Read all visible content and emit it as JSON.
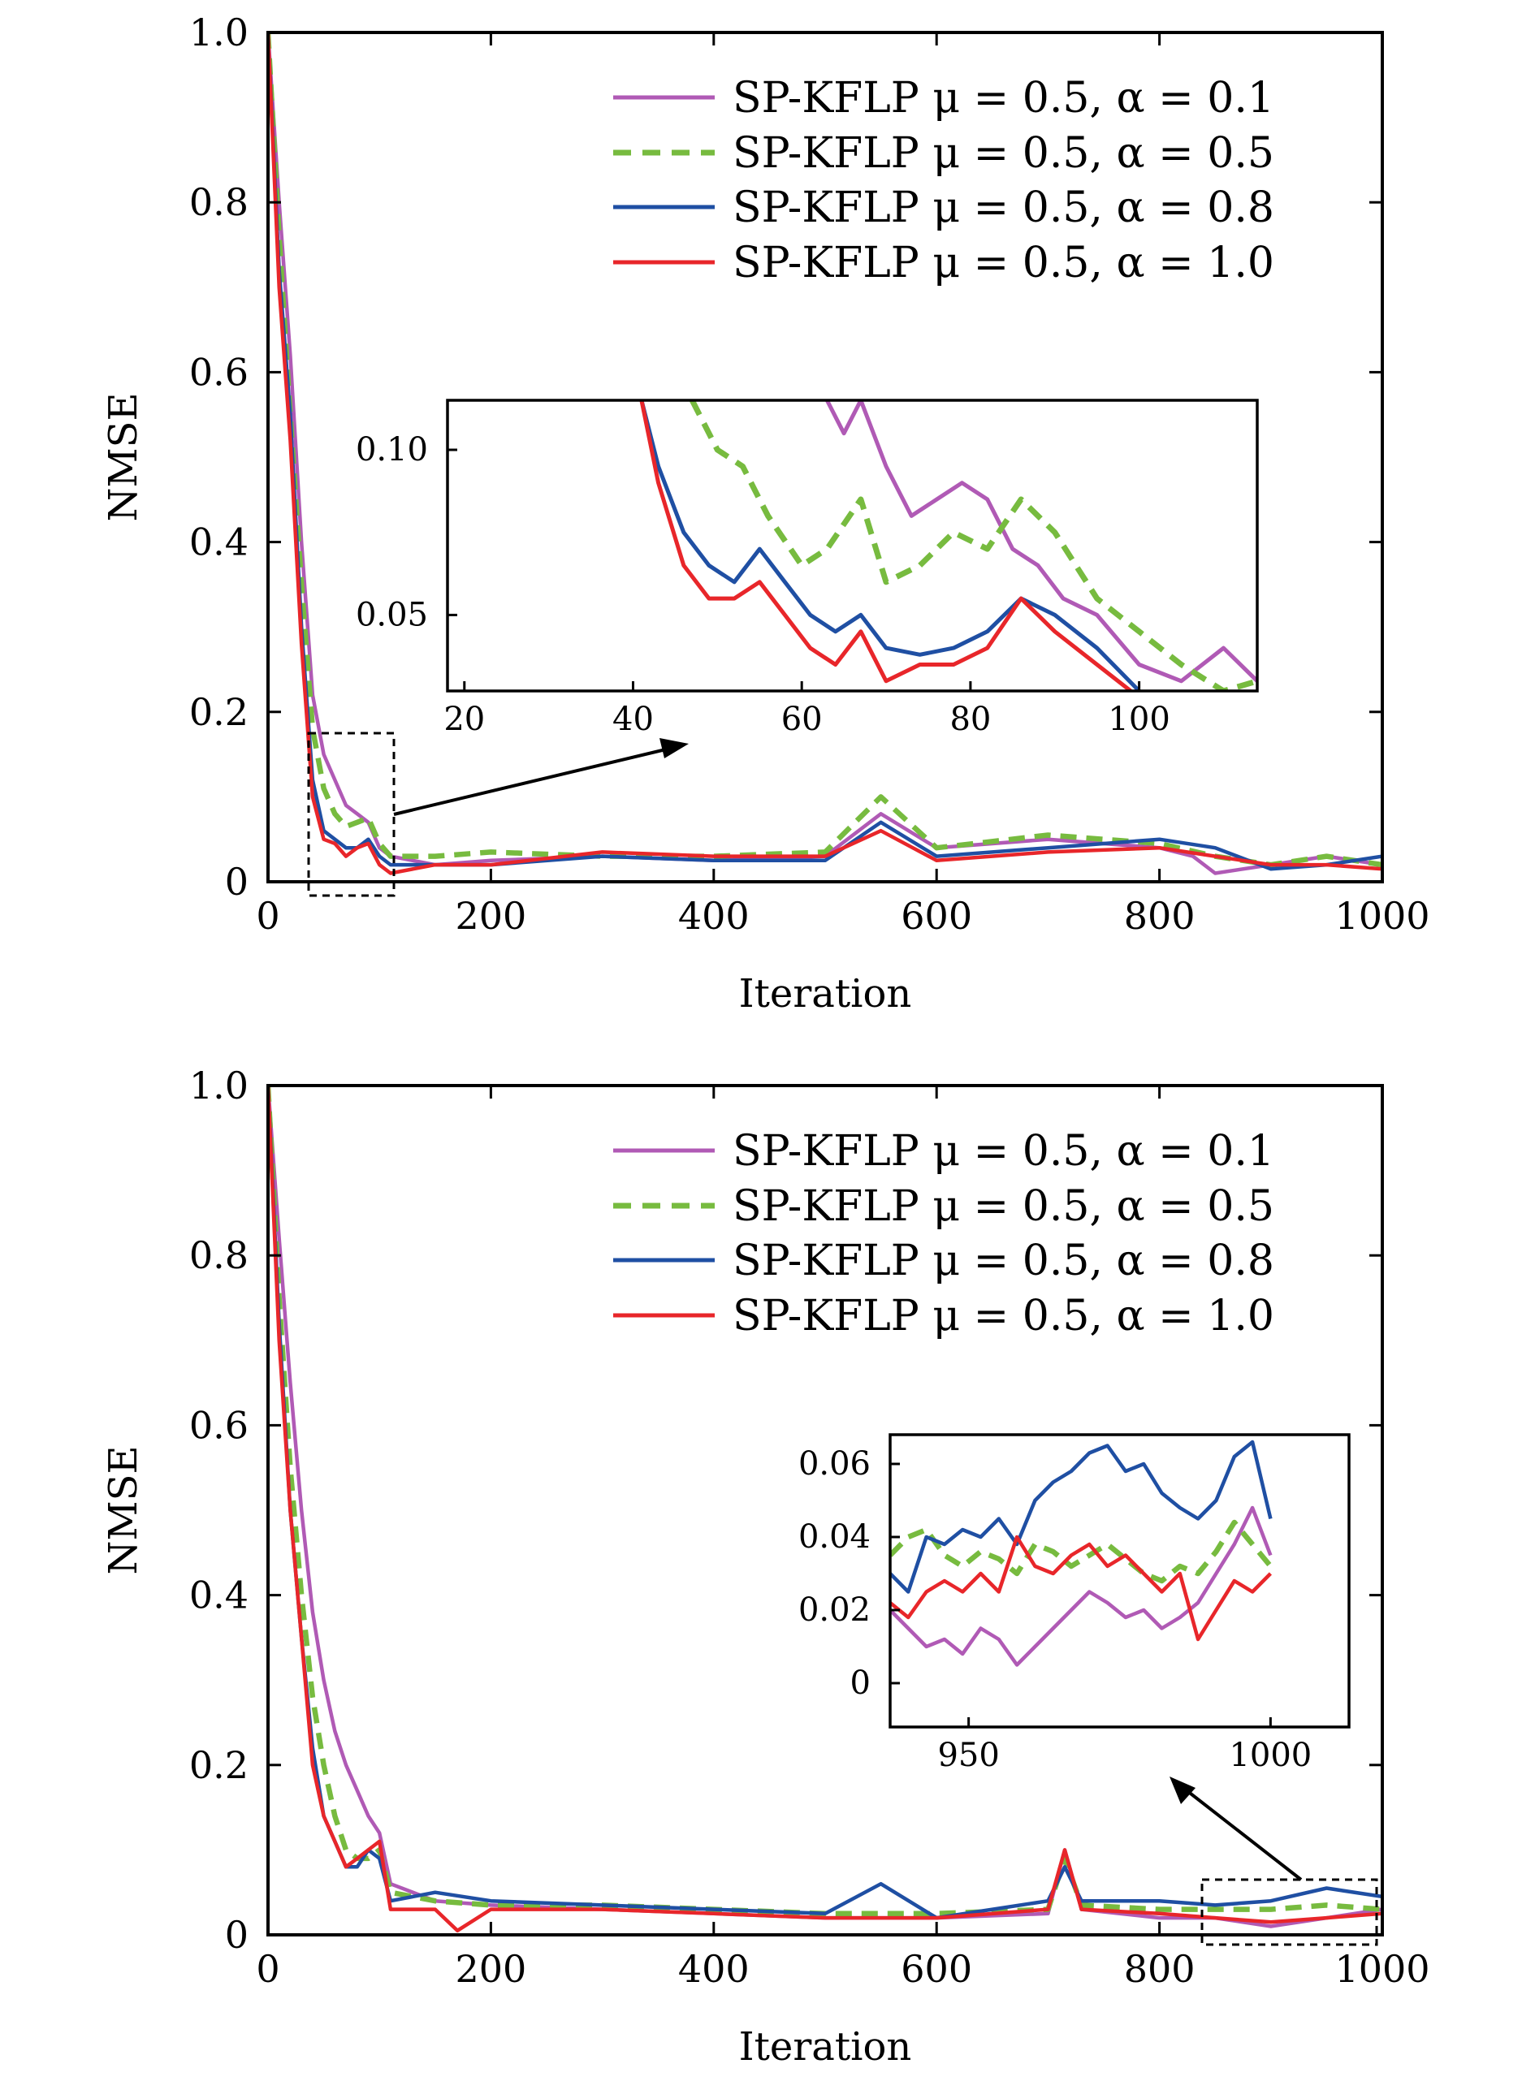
{
  "chart_data": [
    {
      "type": "line",
      "title": "",
      "xlabel": "Iteration",
      "ylabel": "NMSE",
      "xlim": [
        0,
        1000
      ],
      "ylim": [
        0,
        1.0
      ],
      "xticks": [
        0,
        200,
        400,
        600,
        800,
        1000
      ],
      "xtick_labels": [
        "0",
        "200",
        "400",
        "600",
        "800",
        "1000"
      ],
      "yticks": [
        0,
        0.2,
        0.4,
        0.6,
        0.8,
        1.0
      ],
      "ytick_labels": [
        "0",
        "0.2",
        "0.4",
        "0.6",
        "0.8",
        "1.0"
      ],
      "grid": false,
      "legend_position": "top-right",
      "series": [
        {
          "name": "SP-KFLP μ = 0.5, α = 0.1",
          "color": "#b05ab5",
          "dash": "solid",
          "x": [
            0,
            10,
            20,
            30,
            40,
            50,
            60,
            70,
            80,
            90,
            100,
            110,
            150,
            200,
            300,
            400,
            500,
            550,
            600,
            700,
            800,
            830,
            850,
            900,
            950,
            1000
          ],
          "y": [
            1.0,
            0.8,
            0.62,
            0.4,
            0.22,
            0.15,
            0.12,
            0.09,
            0.08,
            0.07,
            0.04,
            0.03,
            0.02,
            0.025,
            0.03,
            0.025,
            0.03,
            0.08,
            0.04,
            0.05,
            0.04,
            0.03,
            0.01,
            0.02,
            0.03,
            0.02
          ]
        },
        {
          "name": "SP-KFLP μ = 0.5, α = 0.5",
          "color": "#77bb3f",
          "dash": "dashed",
          "x": [
            0,
            10,
            20,
            30,
            40,
            50,
            60,
            70,
            80,
            90,
            100,
            110,
            150,
            200,
            300,
            400,
            500,
            550,
            600,
            700,
            800,
            850,
            900,
            950,
            1000
          ],
          "y": [
            1.0,
            0.76,
            0.55,
            0.35,
            0.18,
            0.11,
            0.08,
            0.065,
            0.07,
            0.075,
            0.045,
            0.03,
            0.03,
            0.035,
            0.03,
            0.03,
            0.035,
            0.1,
            0.04,
            0.055,
            0.045,
            0.03,
            0.02,
            0.03,
            0.02
          ]
        },
        {
          "name": "SP-KFLP μ = 0.5, α = 0.8",
          "color": "#1f4fa3",
          "dash": "solid",
          "x": [
            0,
            10,
            20,
            30,
            40,
            50,
            60,
            70,
            80,
            90,
            100,
            110,
            150,
            200,
            300,
            400,
            500,
            550,
            600,
            700,
            800,
            850,
            900,
            950,
            1000
          ],
          "y": [
            1.0,
            0.72,
            0.55,
            0.3,
            0.12,
            0.06,
            0.05,
            0.04,
            0.04,
            0.05,
            0.03,
            0.02,
            0.02,
            0.02,
            0.03,
            0.025,
            0.025,
            0.07,
            0.03,
            0.04,
            0.05,
            0.04,
            0.015,
            0.02,
            0.03
          ]
        },
        {
          "name": "SP-KFLP μ = 0.5, α = 1.0",
          "color": "#e8262a",
          "dash": "solid",
          "x": [
            0,
            10,
            20,
            30,
            40,
            50,
            60,
            70,
            80,
            90,
            100,
            110,
            150,
            200,
            300,
            400,
            500,
            550,
            600,
            700,
            800,
            850,
            900,
            950,
            1000
          ],
          "y": [
            1.0,
            0.7,
            0.52,
            0.28,
            0.1,
            0.05,
            0.045,
            0.03,
            0.04,
            0.045,
            0.02,
            0.01,
            0.02,
            0.02,
            0.035,
            0.03,
            0.03,
            0.06,
            0.025,
            0.035,
            0.04,
            0.03,
            0.02,
            0.02,
            0.015
          ]
        }
      ]
    },
    {
      "type": "line",
      "title": "",
      "xlabel": "",
      "ylabel": "",
      "xlim": [
        18,
        114
      ],
      "ylim": [
        0.027,
        0.115
      ],
      "xticks": [
        20,
        40,
        60,
        80,
        100
      ],
      "xtick_labels": [
        "20",
        "40",
        "60",
        "80",
        "100"
      ],
      "yticks": [
        0.05,
        0.1
      ],
      "ytick_labels": [
        "0.05",
        "0.10"
      ],
      "grid": false,
      "series": [
        {
          "name": "SP-KFLP μ = 0.5, α = 0.1",
          "color": "#b05ab5",
          "dash": "solid",
          "x": [
            63,
            65,
            67,
            70,
            73,
            76,
            79,
            82,
            85,
            88,
            91,
            95,
            100,
            105,
            110,
            114
          ],
          "y": [
            0.115,
            0.105,
            0.115,
            0.095,
            0.08,
            0.085,
            0.09,
            0.085,
            0.07,
            0.065,
            0.055,
            0.05,
            0.035,
            0.03,
            0.04,
            0.03
          ]
        },
        {
          "name": "SP-KFLP μ = 0.5, α = 0.5",
          "color": "#77bb3f",
          "dash": "dashed",
          "x": [
            47,
            50,
            53,
            56,
            60,
            63,
            67,
            70,
            74,
            78,
            82,
            86,
            90,
            95,
            100,
            105,
            110,
            114
          ],
          "y": [
            0.115,
            0.1,
            0.095,
            0.08,
            0.065,
            0.07,
            0.085,
            0.06,
            0.065,
            0.075,
            0.07,
            0.085,
            0.075,
            0.055,
            0.045,
            0.035,
            0.027,
            0.03
          ]
        },
        {
          "name": "SP-KFLP μ = 0.5, α = 0.8",
          "color": "#1f4fa3",
          "dash": "solid",
          "x": [
            41,
            43,
            46,
            49,
            52,
            55,
            58,
            61,
            64,
            67,
            70,
            74,
            78,
            82,
            86,
            90,
            95,
            100
          ],
          "y": [
            0.115,
            0.095,
            0.075,
            0.065,
            0.06,
            0.07,
            0.06,
            0.05,
            0.045,
            0.05,
            0.04,
            0.038,
            0.04,
            0.045,
            0.055,
            0.05,
            0.04,
            0.027
          ]
        },
        {
          "name": "SP-KFLP μ = 0.5, α = 1.0",
          "color": "#e8262a",
          "dash": "solid",
          "x": [
            41,
            43,
            46,
            49,
            52,
            55,
            58,
            61,
            64,
            67,
            70,
            74,
            78,
            82,
            86,
            90,
            95,
            99
          ],
          "y": [
            0.115,
            0.09,
            0.065,
            0.055,
            0.055,
            0.06,
            0.05,
            0.04,
            0.035,
            0.045,
            0.03,
            0.035,
            0.035,
            0.04,
            0.055,
            0.045,
            0.035,
            0.027
          ]
        }
      ]
    },
    {
      "type": "line",
      "title": "",
      "xlabel": "Iteration",
      "ylabel": "NMSE",
      "xlim": [
        0,
        1000
      ],
      "ylim": [
        0,
        1.0
      ],
      "xticks": [
        0,
        200,
        400,
        600,
        800,
        1000
      ],
      "xtick_labels": [
        "0",
        "200",
        "400",
        "600",
        "800",
        "1000"
      ],
      "yticks": [
        0,
        0.2,
        0.4,
        0.6,
        0.8,
        1.0
      ],
      "ytick_labels": [
        "0",
        "0.2",
        "0.4",
        "0.6",
        "0.8",
        "1.0"
      ],
      "grid": false,
      "legend_position": "top-right",
      "series": [
        {
          "name": "SP-KFLP μ = 0.5, α = 0.1",
          "color": "#b05ab5",
          "dash": "solid",
          "x": [
            0,
            10,
            20,
            30,
            40,
            50,
            60,
            70,
            80,
            90,
            100,
            110,
            150,
            200,
            300,
            400,
            500,
            600,
            700,
            715,
            730,
            800,
            850,
            900,
            950,
            1000
          ],
          "y": [
            1.0,
            0.82,
            0.65,
            0.5,
            0.38,
            0.3,
            0.24,
            0.2,
            0.17,
            0.14,
            0.12,
            0.06,
            0.04,
            0.035,
            0.03,
            0.025,
            0.02,
            0.02,
            0.025,
            0.1,
            0.03,
            0.02,
            0.02,
            0.01,
            0.02,
            0.03
          ]
        },
        {
          "name": "SP-KFLP μ = 0.5, α = 0.5",
          "color": "#77bb3f",
          "dash": "dashed",
          "x": [
            0,
            10,
            20,
            30,
            40,
            50,
            60,
            70,
            80,
            90,
            100,
            110,
            150,
            200,
            300,
            400,
            500,
            600,
            700,
            715,
            730,
            800,
            850,
            900,
            950,
            1000
          ],
          "y": [
            1.0,
            0.75,
            0.55,
            0.4,
            0.28,
            0.2,
            0.14,
            0.1,
            0.09,
            0.09,
            0.1,
            0.05,
            0.04,
            0.035,
            0.035,
            0.03,
            0.025,
            0.025,
            0.03,
            0.09,
            0.035,
            0.03,
            0.03,
            0.03,
            0.035,
            0.03
          ]
        },
        {
          "name": "SP-KFLP μ = 0.5, α = 0.8",
          "color": "#1f4fa3",
          "dash": "solid",
          "x": [
            0,
            10,
            20,
            30,
            40,
            50,
            60,
            70,
            80,
            90,
            100,
            110,
            150,
            200,
            300,
            400,
            500,
            550,
            600,
            700,
            715,
            730,
            800,
            850,
            900,
            950,
            1000
          ],
          "y": [
            1.0,
            0.72,
            0.5,
            0.35,
            0.22,
            0.14,
            0.11,
            0.08,
            0.08,
            0.1,
            0.09,
            0.04,
            0.05,
            0.04,
            0.035,
            0.03,
            0.025,
            0.06,
            0.02,
            0.04,
            0.08,
            0.04,
            0.04,
            0.035,
            0.04,
            0.055,
            0.045
          ]
        },
        {
          "name": "SP-KFLP μ = 0.5, α = 1.0",
          "color": "#e8262a",
          "dash": "solid",
          "x": [
            0,
            10,
            20,
            30,
            40,
            50,
            60,
            70,
            80,
            90,
            100,
            110,
            150,
            170,
            200,
            300,
            400,
            500,
            600,
            700,
            715,
            730,
            800,
            850,
            900,
            950,
            1000
          ],
          "y": [
            1.0,
            0.7,
            0.5,
            0.35,
            0.2,
            0.14,
            0.11,
            0.08,
            0.09,
            0.1,
            0.11,
            0.03,
            0.03,
            0.005,
            0.03,
            0.03,
            0.025,
            0.02,
            0.02,
            0.03,
            0.1,
            0.03,
            0.025,
            0.02,
            0.015,
            0.02,
            0.025
          ]
        }
      ]
    },
    {
      "type": "line",
      "title": "",
      "xlabel": "",
      "ylabel": "",
      "xlim": [
        937,
        1013
      ],
      "ylim": [
        -0.012,
        0.068
      ],
      "xticks": [
        950,
        1000
      ],
      "xtick_labels": [
        "950",
        "1000"
      ],
      "yticks": [
        0,
        0.02,
        0.04,
        0.06
      ],
      "ytick_labels": [
        "0",
        "0.02",
        "0.04",
        "0.06"
      ],
      "grid": false,
      "series": [
        {
          "name": "SP-KFLP μ = 0.5, α = 0.1",
          "color": "#b05ab5",
          "dash": "solid",
          "x": [
            937,
            940,
            943,
            946,
            949,
            952,
            955,
            958,
            961,
            964,
            967,
            970,
            973,
            976,
            979,
            982,
            985,
            988,
            991,
            994,
            997,
            1000
          ],
          "y": [
            0.02,
            0.015,
            0.01,
            0.012,
            0.008,
            0.015,
            0.012,
            0.005,
            0.01,
            0.015,
            0.02,
            0.025,
            0.022,
            0.018,
            0.02,
            0.015,
            0.018,
            0.022,
            0.03,
            0.038,
            0.048,
            0.035
          ]
        },
        {
          "name": "SP-KFLP μ = 0.5, α = 0.5",
          "color": "#77bb3f",
          "dash": "dashed",
          "x": [
            937,
            940,
            943,
            946,
            949,
            952,
            955,
            958,
            961,
            964,
            967,
            970,
            973,
            976,
            979,
            982,
            985,
            988,
            991,
            994,
            997,
            1000
          ],
          "y": [
            0.035,
            0.04,
            0.042,
            0.035,
            0.032,
            0.036,
            0.034,
            0.03,
            0.038,
            0.036,
            0.032,
            0.035,
            0.038,
            0.034,
            0.03,
            0.028,
            0.032,
            0.03,
            0.036,
            0.044,
            0.038,
            0.032
          ]
        },
        {
          "name": "SP-KFLP μ = 0.5, α = 0.8",
          "color": "#1f4fa3",
          "dash": "solid",
          "x": [
            937,
            940,
            943,
            946,
            949,
            952,
            955,
            958,
            961,
            964,
            967,
            970,
            973,
            976,
            979,
            982,
            985,
            988,
            991,
            994,
            997,
            1000
          ],
          "y": [
            0.03,
            0.025,
            0.04,
            0.038,
            0.042,
            0.04,
            0.045,
            0.038,
            0.05,
            0.055,
            0.058,
            0.063,
            0.065,
            0.058,
            0.06,
            0.052,
            0.048,
            0.045,
            0.05,
            0.062,
            0.066,
            0.045
          ]
        },
        {
          "name": "SP-KFLP μ = 0.5, α = 1.0",
          "color": "#e8262a",
          "dash": "solid",
          "x": [
            937,
            940,
            943,
            946,
            949,
            952,
            955,
            958,
            961,
            964,
            967,
            970,
            973,
            976,
            979,
            982,
            985,
            988,
            991,
            994,
            997,
            1000
          ],
          "y": [
            0.022,
            0.018,
            0.025,
            0.028,
            0.025,
            0.03,
            0.025,
            0.04,
            0.032,
            0.03,
            0.035,
            0.038,
            0.032,
            0.035,
            0.03,
            0.025,
            0.03,
            0.012,
            0.02,
            0.028,
            0.025,
            0.03
          ]
        }
      ]
    }
  ]
}
